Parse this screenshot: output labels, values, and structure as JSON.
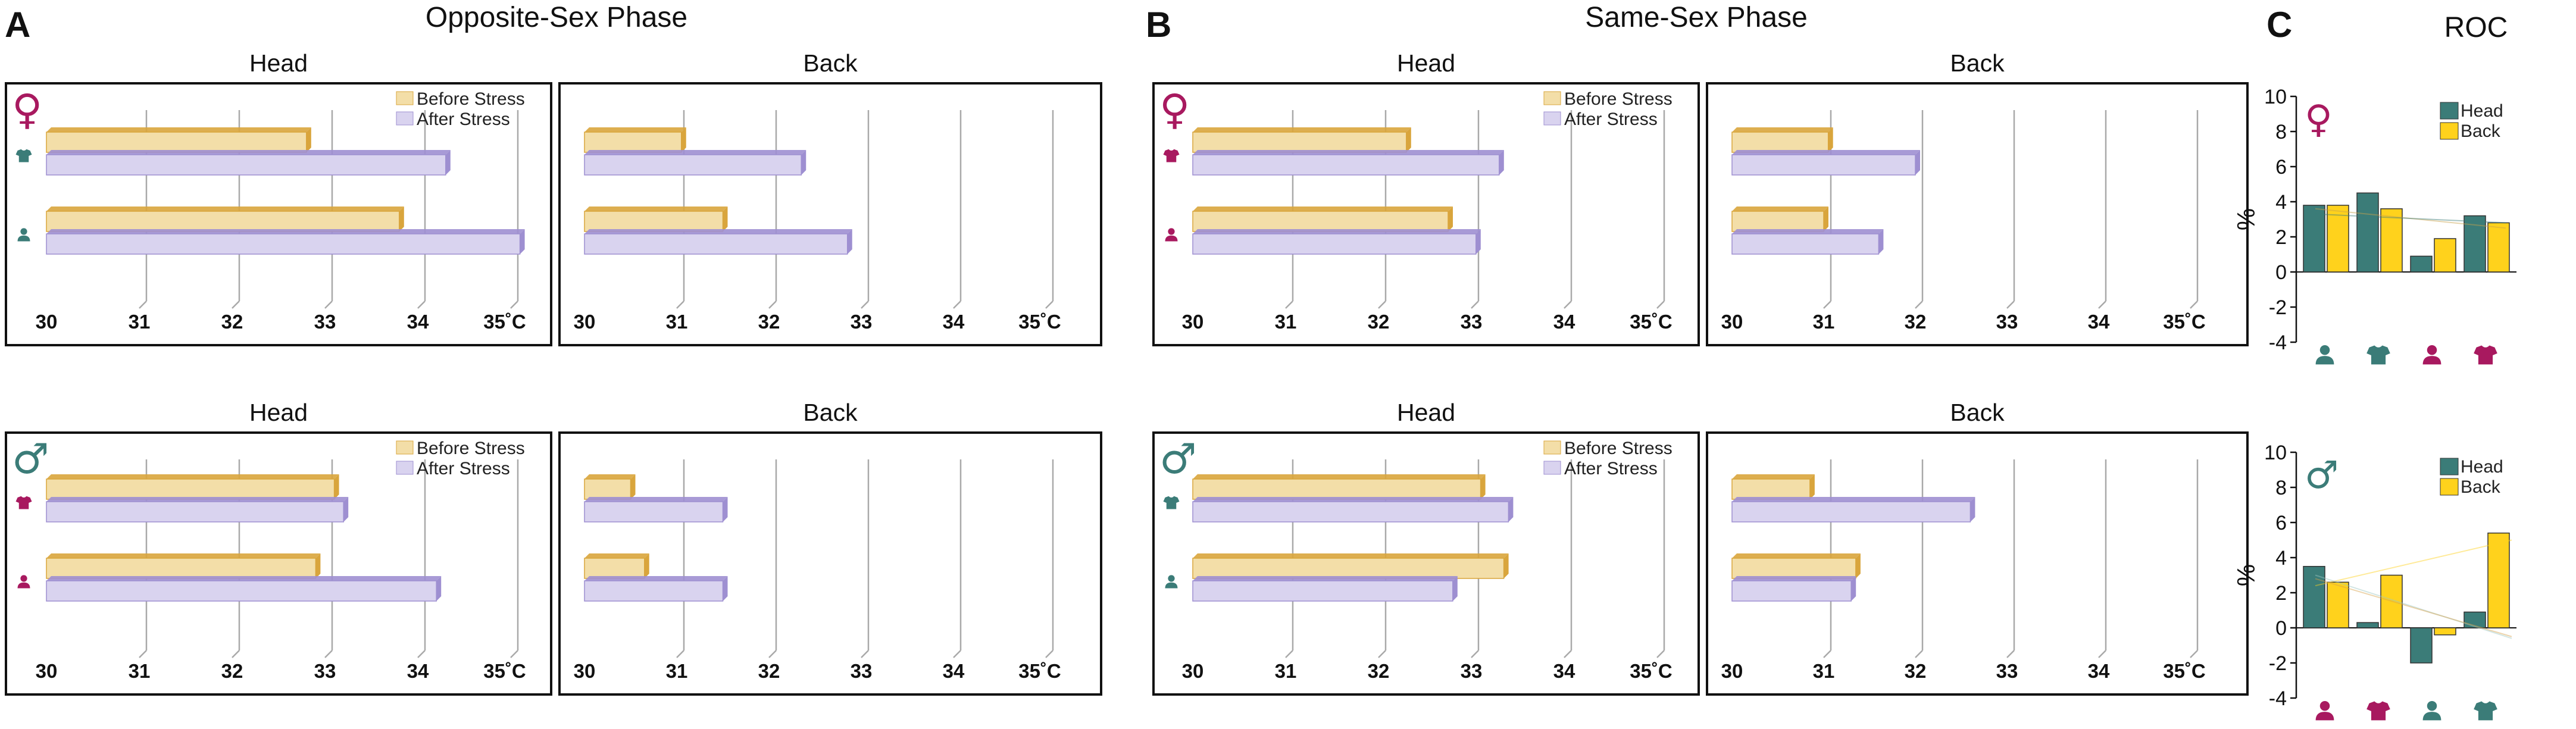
{
  "colors": {
    "before_fill": "#f3dea8",
    "before_edge": "#d9a53c",
    "after_fill": "#d9d3ef",
    "after_edge": "#9e8fd1",
    "head": "#3b7c78",
    "back": "#ffd21c",
    "female": "#a8195f",
    "male": "#3b7c78"
  },
  "panel_labels": {
    "a": "A",
    "b": "B",
    "c": "C"
  },
  "titles": {
    "a": "Opposite-Sex Phase",
    "b": "Same-Sex Phase",
    "c": "ROC"
  },
  "legend": {
    "before": "Before Stress",
    "after": "After Stress",
    "head": "Head",
    "back": "Back"
  },
  "sex_symbols": {
    "female": "♀",
    "male": "♂"
  },
  "bar_axis": {
    "ticks": [
      "30",
      "31",
      "32",
      "33",
      "34",
      "35"
    ],
    "unit": "˚C",
    "min": 30,
    "max": 35
  },
  "roc_axis": {
    "ylabel": "%",
    "ticks": [
      "10",
      "8",
      "6",
      "4",
      "2",
      "0",
      "-2",
      "-4"
    ],
    "min": -4,
    "max": 10
  },
  "chart_data": [
    {
      "type": "bar",
      "title": "Opposite-Sex Phase – Female – Head",
      "categories": [
        "shirt-icon",
        "person-icon"
      ],
      "series": [
        {
          "name": "Before Stress",
          "values": [
            32.8,
            33.8
          ]
        },
        {
          "name": "After Stress",
          "values": [
            34.3,
            35.1
          ]
        }
      ],
      "xlim": [
        30,
        35
      ],
      "xlabel": "˚C"
    },
    {
      "type": "bar",
      "title": "Opposite-Sex Phase – Female – Back",
      "categories": [
        "shirt-icon",
        "person-icon"
      ],
      "series": [
        {
          "name": "Before Stress",
          "values": [
            31.05,
            31.5
          ]
        },
        {
          "name": "After Stress",
          "values": [
            32.35,
            32.85
          ]
        }
      ],
      "xlim": [
        30,
        35
      ],
      "xlabel": "˚C"
    },
    {
      "type": "bar",
      "title": "Opposite-Sex Phase – Male – Head",
      "categories": [
        "shirt-icon",
        "person-icon"
      ],
      "series": [
        {
          "name": "Before Stress",
          "values": [
            33.1,
            32.9
          ]
        },
        {
          "name": "After Stress",
          "values": [
            33.2,
            34.2
          ]
        }
      ],
      "xlim": [
        30,
        35
      ],
      "xlabel": "˚C"
    },
    {
      "type": "bar",
      "title": "Opposite-Sex Phase – Male – Back",
      "categories": [
        "shirt-icon",
        "person-icon"
      ],
      "series": [
        {
          "name": "Before Stress",
          "values": [
            30.5,
            30.65
          ]
        },
        {
          "name": "After Stress",
          "values": [
            31.5,
            31.5
          ]
        }
      ],
      "xlim": [
        30,
        35
      ],
      "xlabel": "˚C"
    },
    {
      "type": "bar",
      "title": "Same-Sex Phase – Female – Head",
      "categories": [
        "shirt-icon",
        "person-icon"
      ],
      "series": [
        {
          "name": "Before Stress",
          "values": [
            32.3,
            32.75
          ]
        },
        {
          "name": "After Stress",
          "values": [
            33.3,
            33.05
          ]
        }
      ],
      "xlim": [
        30,
        35
      ],
      "xlabel": "˚C"
    },
    {
      "type": "bar",
      "title": "Same-Sex Phase – Female – Back",
      "categories": [
        "shirt-icon",
        "person-icon"
      ],
      "series": [
        {
          "name": "Before Stress",
          "values": [
            31.05,
            31.0
          ]
        },
        {
          "name": "After Stress",
          "values": [
            32.0,
            31.6
          ]
        }
      ],
      "xlim": [
        30,
        35
      ],
      "xlabel": "˚C"
    },
    {
      "type": "bar",
      "title": "Same-Sex Phase – Male – Head",
      "categories": [
        "shirt-icon",
        "person-icon"
      ],
      "series": [
        {
          "name": "Before Stress",
          "values": [
            33.1,
            33.35
          ]
        },
        {
          "name": "After Stress",
          "values": [
            33.4,
            32.8
          ]
        }
      ],
      "xlim": [
        30,
        35
      ],
      "xlabel": "˚C"
    },
    {
      "type": "bar",
      "title": "Same-Sex Phase – Male – Back",
      "categories": [
        "shirt-icon",
        "person-icon"
      ],
      "series": [
        {
          "name": "Before Stress",
          "values": [
            30.85,
            31.35
          ]
        },
        {
          "name": "After Stress",
          "values": [
            32.6,
            31.3
          ]
        }
      ],
      "xlim": [
        30,
        35
      ],
      "xlabel": "˚C"
    },
    {
      "type": "bar",
      "title": "ROC – Female",
      "ylabel": "%",
      "ylim": [
        -4,
        10
      ],
      "categories": [
        "person-teal",
        "shirt-teal",
        "person-magenta",
        "shirt-magenta"
      ],
      "series": [
        {
          "name": "Head",
          "values": [
            3.8,
            4.5,
            0.9,
            3.2
          ]
        },
        {
          "name": "Back",
          "values": [
            3.8,
            3.6,
            1.9,
            2.8
          ]
        }
      ]
    },
    {
      "type": "bar",
      "title": "ROC – Male",
      "ylabel": "%",
      "ylim": [
        -4,
        10
      ],
      "categories": [
        "person-magenta",
        "shirt-magenta",
        "person-teal",
        "shirt-teal"
      ],
      "series": [
        {
          "name": "Head",
          "values": [
            3.5,
            0.3,
            -2.0,
            0.9
          ]
        },
        {
          "name": "Back",
          "values": [
            2.6,
            3.0,
            -0.4,
            5.4
          ]
        }
      ]
    }
  ]
}
